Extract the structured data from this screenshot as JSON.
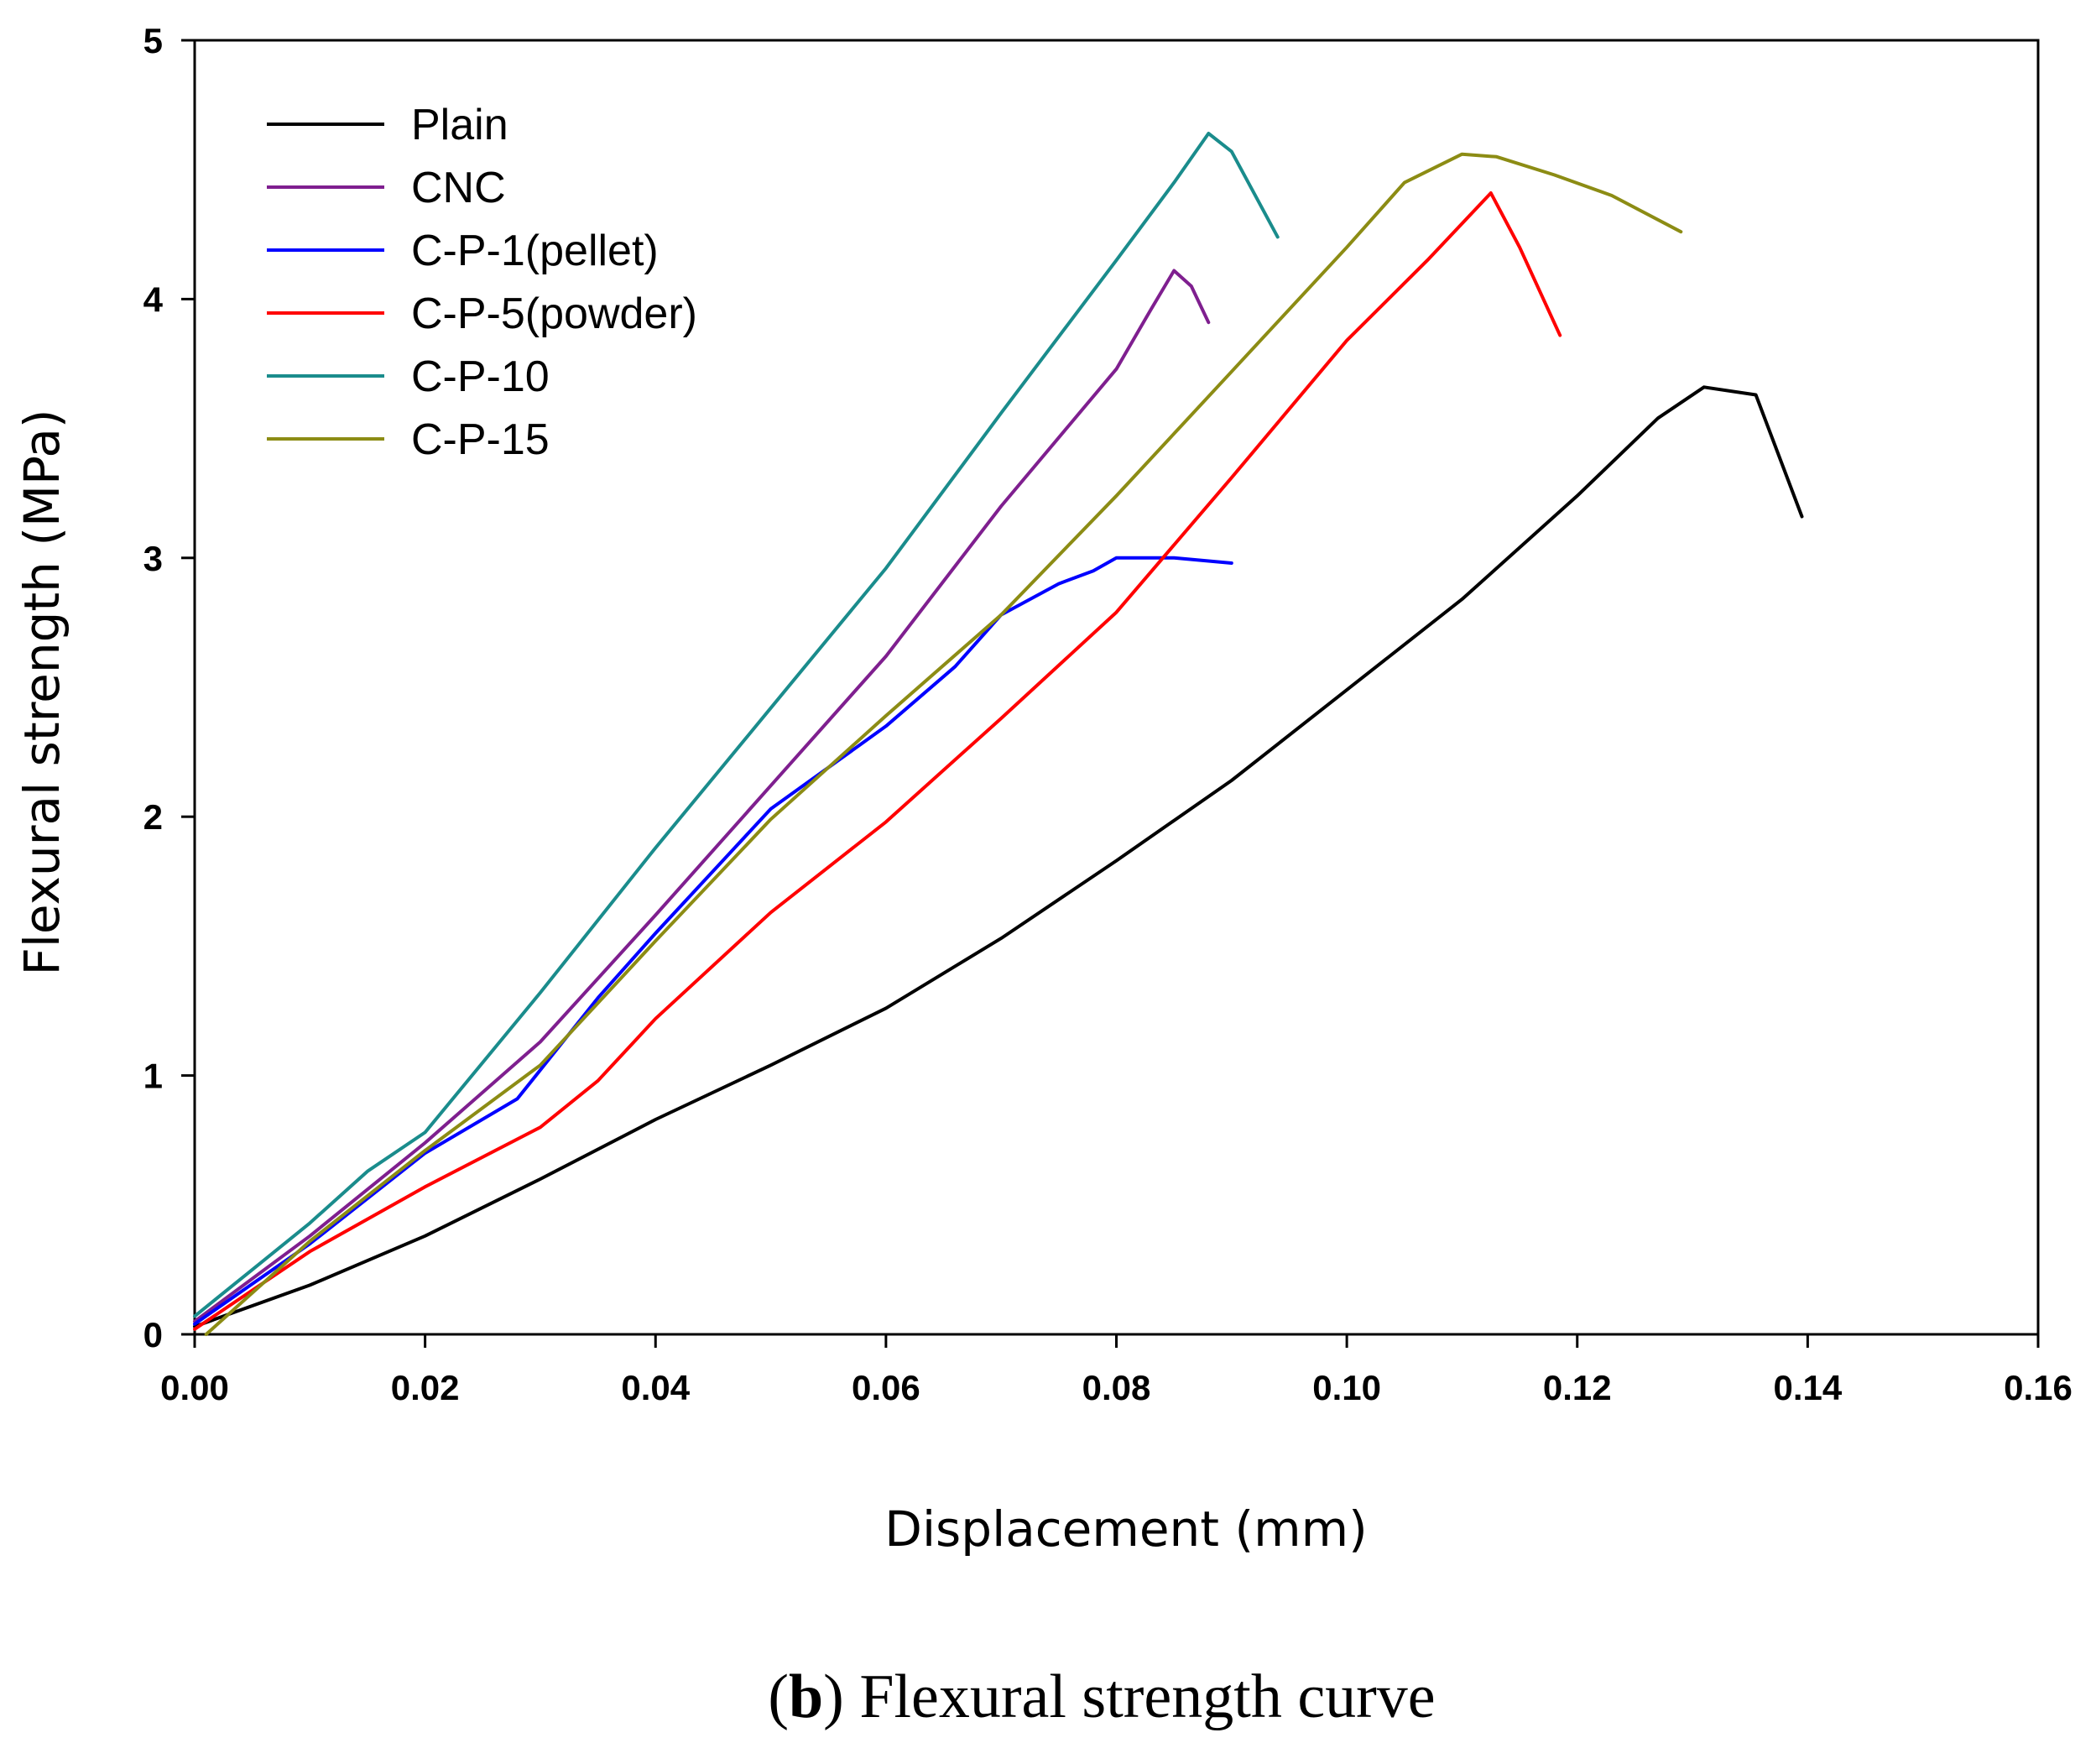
{
  "chart_data": {
    "type": "line",
    "caption": {
      "letter": "b",
      "open": "(",
      "close": ")",
      "text": " Flexural strength curve"
    },
    "xlabel": "Displacement (mm)",
    "ylabel": "Flexural strength (MPa)",
    "xlim": [
      0,
      0.16
    ],
    "ylim": [
      0,
      5
    ],
    "xticks": [
      "0.00",
      "0.02",
      "0.04",
      "0.06",
      "0.08",
      "0.10",
      "0.12",
      "0.14",
      "0.16"
    ],
    "yticks": [
      "0",
      "1",
      "2",
      "3",
      "4",
      "5"
    ],
    "legend_position": "top-left",
    "series": [
      {
        "name": "Plain",
        "color": "#000000",
        "x": [
          0,
          0.01,
          0.02,
          0.03,
          0.04,
          0.05,
          0.06,
          0.07,
          0.08,
          0.09,
          0.1,
          0.11,
          0.12,
          0.127,
          0.131,
          0.1355,
          0.1395
        ],
        "y": [
          0.03,
          0.19,
          0.38,
          0.6,
          0.83,
          1.04,
          1.26,
          1.53,
          1.83,
          2.14,
          2.49,
          2.84,
          3.24,
          3.54,
          3.66,
          3.63,
          3.16
        ]
      },
      {
        "name": "CNC",
        "color": "#7F1F8F",
        "x": [
          0,
          0.01,
          0.02,
          0.03,
          0.04,
          0.05,
          0.06,
          0.07,
          0.08,
          0.083,
          0.085,
          0.0865,
          0.088
        ],
        "y": [
          0.05,
          0.38,
          0.74,
          1.13,
          1.62,
          2.12,
          2.62,
          3.2,
          3.73,
          3.96,
          4.11,
          4.05,
          3.91
        ]
      },
      {
        "name": "C-P-1(pellet)",
        "color": "#0000FF",
        "x": [
          0,
          0.01,
          0.02,
          0.028,
          0.035,
          0.04,
          0.05,
          0.06,
          0.066,
          0.07,
          0.075,
          0.078,
          0.08,
          0.085,
          0.09
        ],
        "y": [
          0.04,
          0.35,
          0.7,
          0.91,
          1.3,
          1.55,
          2.03,
          2.35,
          2.58,
          2.78,
          2.9,
          2.95,
          3.0,
          3.0,
          2.98
        ]
      },
      {
        "name": "C-P-5(powder)",
        "color": "#FF0000",
        "x": [
          0,
          0.01,
          0.02,
          0.03,
          0.035,
          0.04,
          0.05,
          0.06,
          0.07,
          0.08,
          0.09,
          0.1,
          0.107,
          0.1125,
          0.115,
          0.1185
        ],
        "y": [
          0.02,
          0.32,
          0.57,
          0.8,
          0.98,
          1.22,
          1.63,
          1.98,
          2.38,
          2.79,
          3.31,
          3.84,
          4.15,
          4.41,
          4.2,
          3.86
        ]
      },
      {
        "name": "C-P-10",
        "color": "#1A8C8C",
        "x": [
          0,
          0.005,
          0.01,
          0.015,
          0.02,
          0.03,
          0.04,
          0.05,
          0.06,
          0.07,
          0.08,
          0.085,
          0.088,
          0.09,
          0.094
        ],
        "y": [
          0.07,
          0.25,
          0.43,
          0.63,
          0.78,
          1.32,
          1.88,
          2.42,
          2.96,
          3.56,
          4.15,
          4.45,
          4.64,
          4.57,
          4.24
        ]
      },
      {
        "name": "C-P-15",
        "color": "#8C8C14",
        "x": [
          0.001,
          0.01,
          0.02,
          0.03,
          0.04,
          0.05,
          0.06,
          0.07,
          0.08,
          0.09,
          0.1,
          0.105,
          0.11,
          0.113,
          0.118,
          0.123,
          0.129
        ],
        "y": [
          0.0,
          0.36,
          0.71,
          1.04,
          1.52,
          1.99,
          2.39,
          2.78,
          3.24,
          3.72,
          4.2,
          4.45,
          4.56,
          4.55,
          4.48,
          4.4,
          4.26
        ]
      }
    ]
  }
}
